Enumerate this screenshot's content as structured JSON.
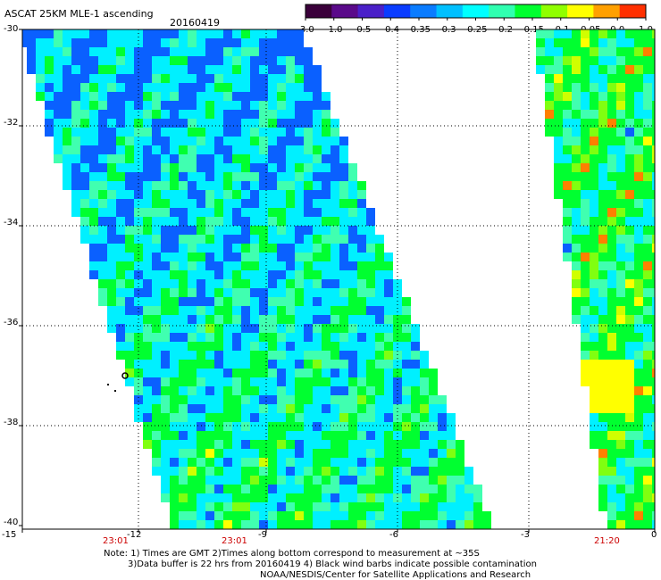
{
  "header": {
    "title": "ASCAT 25KM MLE-1 ascending",
    "date": "20160419"
  },
  "colorbar": {
    "tick_labels": [
      "-3.0",
      "-1.0",
      "-0.5",
      "-0.4",
      "-0.35",
      "-0.3",
      "-0.25",
      "-0.2",
      "-0.15",
      "-0.1",
      "-0.05",
      "0.0",
      "1.0"
    ],
    "colors": [
      "#3a003a",
      "#5a0a8a",
      "#4a20c8",
      "#0a3cff",
      "#0a7cff",
      "#00c0ff",
      "#00ffff",
      "#30ffb0",
      "#00ff30",
      "#90ff00",
      "#ffff00",
      "#ffa000",
      "#ff3000"
    ]
  },
  "map": {
    "lat_labels": [
      "-30",
      "-32",
      "-34",
      "-36",
      "-38",
      "-40"
    ],
    "lon_labels": [
      "-15",
      "-12",
      "-9",
      "-6",
      "-3",
      "0"
    ],
    "swath_times": [
      "23:01",
      "23:01",
      "21:20"
    ],
    "palette": {
      "ocean_cyan": "#00f0ff",
      "green": "#00ff30",
      "yellow": "#ffff00",
      "orange": "#ff8000",
      "blue": "#0a60ff"
    }
  },
  "notes": {
    "line1": "Note: 1) Times are GMT 2)Times along bottom correspond to measurement at ~35S",
    "line2": "3)Data buffer is 22 hrs from 20160419 4) Black wind barbs indicate possible contamination",
    "line3": "NOAA/NESDIS/Center for Satellite Applications and Research"
  }
}
